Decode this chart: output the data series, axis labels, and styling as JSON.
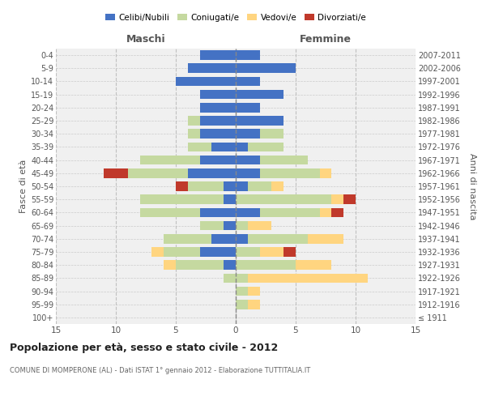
{
  "age_groups": [
    "100+",
    "95-99",
    "90-94",
    "85-89",
    "80-84",
    "75-79",
    "70-74",
    "65-69",
    "60-64",
    "55-59",
    "50-54",
    "45-49",
    "40-44",
    "35-39",
    "30-34",
    "25-29",
    "20-24",
    "15-19",
    "10-14",
    "5-9",
    "0-4"
  ],
  "birth_years": [
    "≤ 1911",
    "1912-1916",
    "1917-1921",
    "1922-1926",
    "1927-1931",
    "1932-1936",
    "1937-1941",
    "1942-1946",
    "1947-1951",
    "1952-1956",
    "1957-1961",
    "1962-1966",
    "1967-1971",
    "1972-1976",
    "1977-1981",
    "1982-1986",
    "1987-1991",
    "1992-1996",
    "1997-2001",
    "2002-2006",
    "2007-2011"
  ],
  "males": {
    "celibi": [
      0,
      0,
      0,
      0,
      1,
      3,
      2,
      1,
      3,
      1,
      1,
      4,
      3,
      2,
      3,
      3,
      3,
      3,
      5,
      4,
      3
    ],
    "coniugati": [
      0,
      0,
      0,
      1,
      4,
      3,
      4,
      2,
      5,
      7,
      3,
      5,
      5,
      2,
      1,
      1,
      0,
      0,
      0,
      0,
      0
    ],
    "vedovi": [
      0,
      0,
      0,
      0,
      1,
      1,
      0,
      0,
      0,
      0,
      0,
      0,
      0,
      0,
      0,
      0,
      0,
      0,
      0,
      0,
      0
    ],
    "divorziati": [
      0,
      0,
      0,
      0,
      0,
      0,
      0,
      0,
      0,
      0,
      1,
      2,
      0,
      0,
      0,
      0,
      0,
      0,
      0,
      0,
      0
    ]
  },
  "females": {
    "nubili": [
      0,
      0,
      0,
      0,
      0,
      0,
      1,
      0,
      2,
      0,
      1,
      2,
      2,
      1,
      2,
      4,
      2,
      4,
      2,
      5,
      2
    ],
    "coniugate": [
      0,
      1,
      1,
      1,
      5,
      2,
      5,
      1,
      5,
      8,
      2,
      5,
      4,
      3,
      2,
      0,
      0,
      0,
      0,
      0,
      0
    ],
    "vedove": [
      0,
      1,
      1,
      10,
      3,
      2,
      3,
      2,
      1,
      1,
      1,
      1,
      0,
      0,
      0,
      0,
      0,
      0,
      0,
      0,
      0
    ],
    "divorziate": [
      0,
      0,
      0,
      0,
      0,
      1,
      0,
      0,
      1,
      1,
      0,
      0,
      0,
      0,
      0,
      0,
      0,
      0,
      0,
      0,
      0
    ]
  },
  "colors": {
    "celibi_nubili": "#4472C4",
    "coniugati": "#C5D9A0",
    "vedovi": "#FFD580",
    "divorziati": "#C0392B"
  },
  "xlim": 15,
  "title_main": "Popolazione per età, sesso e stato civile - 2012",
  "title_sub": "COMUNE DI MOMPERONE (AL) - Dati ISTAT 1° gennaio 2012 - Elaborazione TUTTITALIA.IT",
  "ylabel_left": "Fasce di età",
  "ylabel_right": "Anni di nascita",
  "xlabel_males": "Maschi",
  "xlabel_females": "Femmine",
  "bg_color": "#f0f0f0",
  "grid_color": "#cccccc"
}
